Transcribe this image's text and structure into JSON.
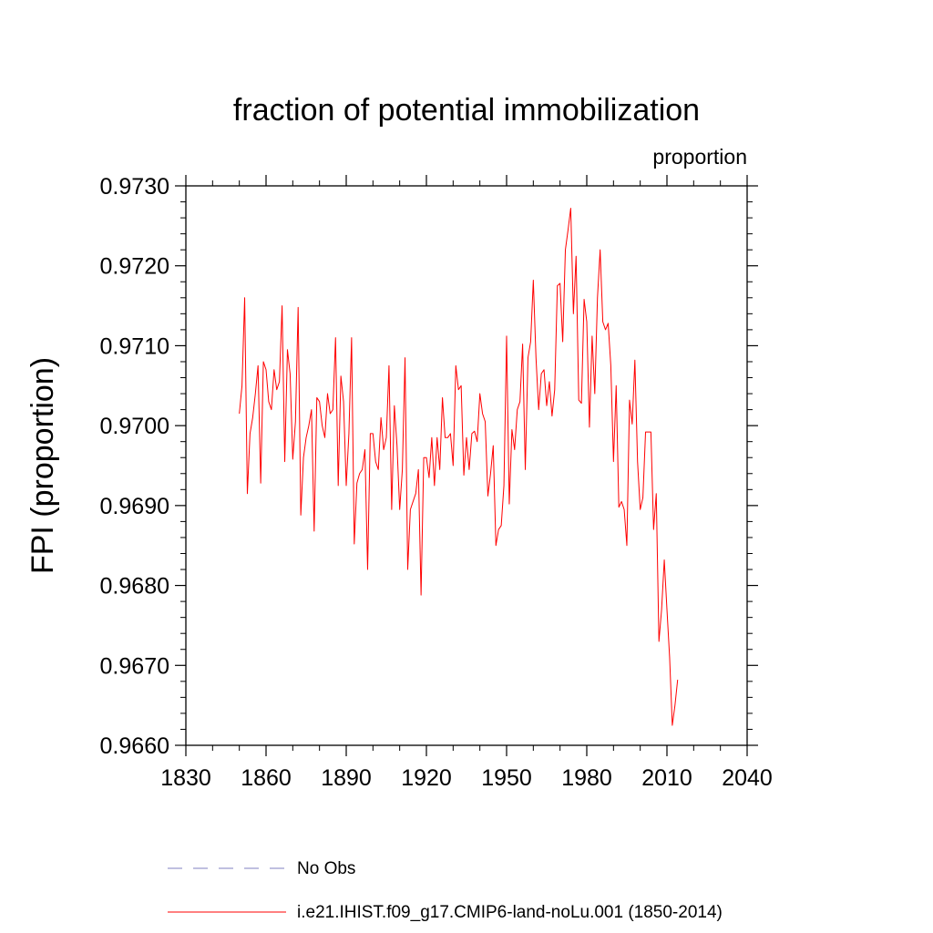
{
  "chart_data": {
    "type": "line",
    "title": "fraction of potential immobilization",
    "units_label": "proportion",
    "ylabel": "FPI  (proportion)",
    "xlabel": "",
    "xlim": [
      1830,
      2040
    ],
    "ylim": [
      0.966,
      0.973
    ],
    "x_ticks": [
      1830,
      1860,
      1890,
      1920,
      1950,
      1980,
      2010,
      2040
    ],
    "y_ticks": [
      "0.9660",
      "0.9670",
      "0.9680",
      "0.9690",
      "0.9700",
      "0.9710",
      "0.9720",
      "0.9730"
    ],
    "grid": false,
    "legend_position": "bottom",
    "series": [
      {
        "name": "No Obs",
        "style": "dashed",
        "color": "#8080c0",
        "x": [],
        "values": []
      },
      {
        "name": "i.e21.IHIST.f09_g17.CMIP6-land-noLu.001 (1850-2014)",
        "style": "solid",
        "color": "#ff0000",
        "x": [
          1850,
          1851,
          1852,
          1853,
          1854,
          1855,
          1856,
          1857,
          1858,
          1859,
          1860,
          1861,
          1862,
          1863,
          1864,
          1865,
          1866,
          1867,
          1868,
          1869,
          1870,
          1871,
          1872,
          1873,
          1874,
          1875,
          1876,
          1877,
          1878,
          1879,
          1880,
          1881,
          1882,
          1883,
          1884,
          1885,
          1886,
          1887,
          1888,
          1889,
          1890,
          1891,
          1892,
          1893,
          1894,
          1895,
          1896,
          1897,
          1898,
          1899,
          1900,
          1901,
          1902,
          1903,
          1904,
          1905,
          1906,
          1907,
          1908,
          1909,
          1910,
          1911,
          1912,
          1913,
          1914,
          1915,
          1916,
          1917,
          1918,
          1919,
          1920,
          1921,
          1922,
          1923,
          1924,
          1925,
          1926,
          1927,
          1928,
          1929,
          1930,
          1931,
          1932,
          1933,
          1934,
          1935,
          1936,
          1937,
          1938,
          1939,
          1940,
          1941,
          1942,
          1943,
          1944,
          1945,
          1946,
          1947,
          1948,
          1949,
          1950,
          1951,
          1952,
          1953,
          1954,
          1955,
          1956,
          1957,
          1958,
          1959,
          1960,
          1961,
          1962,
          1963,
          1964,
          1965,
          1966,
          1967,
          1968,
          1969,
          1970,
          1971,
          1972,
          1973,
          1974,
          1975,
          1976,
          1977,
          1978,
          1979,
          1980,
          1981,
          1982,
          1983,
          1984,
          1985,
          1986,
          1987,
          1988,
          1989,
          1990,
          1991,
          1992,
          1993,
          1994,
          1995,
          1996,
          1997,
          1998,
          1999,
          2000,
          2001,
          2002,
          2003,
          2004,
          2005,
          2006,
          2007,
          2008,
          2009,
          2010,
          2011,
          2012,
          2013,
          2014
        ],
        "values": [
          0.97015,
          0.9705,
          0.9716,
          0.96915,
          0.9699,
          0.9701,
          0.9704,
          0.97075,
          0.96928,
          0.9708,
          0.9707,
          0.9703,
          0.9702,
          0.9707,
          0.97045,
          0.97055,
          0.9715,
          0.96955,
          0.97095,
          0.97065,
          0.96958,
          0.97005,
          0.97148,
          0.96888,
          0.9696,
          0.96985,
          0.97,
          0.9702,
          0.96868,
          0.97035,
          0.9703,
          0.97,
          0.96985,
          0.9704,
          0.97015,
          0.9702,
          0.9711,
          0.96925,
          0.97062,
          0.9703,
          0.96925,
          0.9699,
          0.9711,
          0.96852,
          0.96928,
          0.9694,
          0.96945,
          0.9697,
          0.9682,
          0.9699,
          0.9699,
          0.96955,
          0.96945,
          0.9701,
          0.9697,
          0.96985,
          0.97075,
          0.96895,
          0.97025,
          0.96975,
          0.96895,
          0.96945,
          0.97085,
          0.9682,
          0.96895,
          0.96905,
          0.96915,
          0.96945,
          0.96788,
          0.9696,
          0.9696,
          0.96935,
          0.96985,
          0.96925,
          0.96985,
          0.96945,
          0.97035,
          0.96985,
          0.96985,
          0.9699,
          0.9695,
          0.97075,
          0.97045,
          0.9705,
          0.96938,
          0.96985,
          0.96945,
          0.9699,
          0.96993,
          0.9698,
          0.9704,
          0.97015,
          0.97005,
          0.96912,
          0.9694,
          0.96975,
          0.9685,
          0.9687,
          0.96875,
          0.96925,
          0.97112,
          0.96902,
          0.96995,
          0.9697,
          0.9702,
          0.9703,
          0.97102,
          0.96945,
          0.97085,
          0.97105,
          0.97182,
          0.97085,
          0.9702,
          0.97065,
          0.9707,
          0.97025,
          0.97055,
          0.97012,
          0.97045,
          0.97175,
          0.97178,
          0.97105,
          0.9722,
          0.97245,
          0.97272,
          0.9714,
          0.97212,
          0.97032,
          0.97028,
          0.97158,
          0.9713,
          0.96998,
          0.97112,
          0.9704,
          0.9716,
          0.9722,
          0.9713,
          0.9712,
          0.97128,
          0.97075,
          0.96955,
          0.9705,
          0.96898,
          0.96905,
          0.96895,
          0.9685,
          0.97032,
          0.97002,
          0.97082,
          0.96955,
          0.96895,
          0.9691,
          0.96992,
          0.96992,
          0.96992,
          0.9687,
          0.96915,
          0.9673,
          0.9677,
          0.96832,
          0.9677,
          0.9671,
          0.96625,
          0.9665,
          0.96682
        ]
      }
    ]
  }
}
